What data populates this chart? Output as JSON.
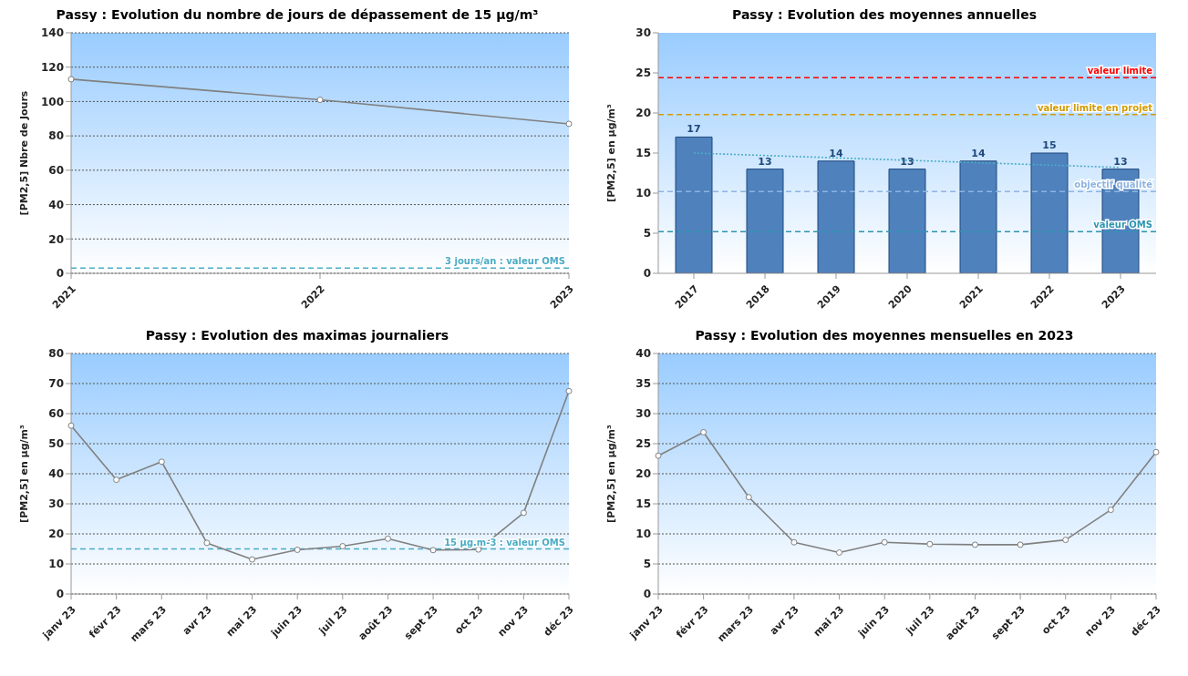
{
  "chart_data": [
    {
      "type": "line",
      "title": "Passy : Evolution du nombre de jours de dépassement de 15 µg/m³",
      "ylabel": "[PM2,5] Nbre de Jours",
      "categories": [
        "2021",
        "2022",
        "2023"
      ],
      "series": [
        {
          "color": "#808080",
          "values": [
            113,
            101,
            87
          ]
        }
      ],
      "ylim": [
        0,
        140
      ],
      "yticks": [
        0,
        20,
        40,
        60,
        80,
        100,
        120,
        140
      ],
      "grid": "y",
      "marker": "circle",
      "line_style": "solid",
      "ref_lines": [
        {
          "axis": "y",
          "value": 3,
          "label": "3 jours/an : valeur OMS",
          "color": "#4bacc6",
          "line_style": "dashed"
        }
      ]
    },
    {
      "type": "bar",
      "title": "Passy : Evolution des moyennes annuelles",
      "ylabel": "[PM2,5] en µg/m³",
      "categories": [
        "2017",
        "2018",
        "2019",
        "2020",
        "2021",
        "2022",
        "2023"
      ],
      "series": [
        {
          "color": "#4f81bd",
          "values": [
            17,
            13,
            14,
            13,
            14,
            15,
            13
          ],
          "value_labels": [
            "17",
            "13",
            "14",
            "13",
            "14",
            "15",
            "13"
          ]
        },
        {
          "type": "line",
          "color": "#4bacc6",
          "line_style": "dotted",
          "values": [
            15,
            null,
            null,
            null,
            null,
            null,
            13.2
          ]
        }
      ],
      "ylim": [
        0,
        30
      ],
      "yticks": [
        0,
        5,
        10,
        15,
        20,
        25,
        30
      ],
      "ref_lines": [
        {
          "axis": "y",
          "value": 24.4,
          "label": "valeur limite",
          "color": "#ff0000",
          "line_style": "dashed"
        },
        {
          "axis": "y",
          "value": 19.8,
          "label": "valeur limite en projet",
          "color": "#d49b00",
          "line_style": "dashed"
        },
        {
          "axis": "y",
          "value": 10.2,
          "label": "objectif qualité",
          "color": "#8db4e2",
          "line_style": "dashed"
        },
        {
          "axis": "y",
          "value": 5.2,
          "label": "valeur OMS",
          "color": "#2e95b0",
          "line_style": "dashed"
        }
      ]
    },
    {
      "type": "line",
      "title": "Passy : Evolution des maximas journaliers",
      "ylabel": "[PM2,5] en µg/m³",
      "categories": [
        "janv 23",
        "févr 23",
        "mars 23",
        "avr 23",
        "mai 23",
        "juin 23",
        "juil 23",
        "août 23",
        "sept 23",
        "oct 23",
        "nov 23",
        "déc 23"
      ],
      "series": [
        {
          "color": "#808080",
          "values": [
            56,
            38,
            44,
            17,
            11.5,
            14.7,
            15.9,
            18.4,
            14.6,
            14.8,
            27,
            67.5
          ]
        }
      ],
      "ylim": [
        0,
        80
      ],
      "yticks": [
        0,
        10,
        20,
        30,
        40,
        50,
        60,
        70,
        80
      ],
      "grid": "y",
      "marker": "circle",
      "line_style": "solid",
      "ref_lines": [
        {
          "axis": "y",
          "value": 15,
          "label": "15 µg.m-3 : valeur OMS",
          "color": "#4bacc6",
          "line_style": "dashed"
        }
      ]
    },
    {
      "type": "line",
      "title": "Passy : Evolution des moyennes mensuelles en 2023",
      "ylabel": "[PM2,5] en µg/m³",
      "categories": [
        "janv 23",
        "févr 23",
        "mars 23",
        "avr 23",
        "mai 23",
        "juin 23",
        "juil 23",
        "août 23",
        "sept 23",
        "oct 23",
        "nov 23",
        "déc 23"
      ],
      "series": [
        {
          "color": "#808080",
          "values": [
            23,
            26.9,
            16.1,
            8.6,
            6.9,
            8.6,
            8.3,
            8.2,
            8.2,
            9,
            14,
            23.6
          ]
        }
      ],
      "ylim": [
        0,
        40
      ],
      "yticks": [
        0,
        5,
        10,
        15,
        20,
        25,
        30,
        35,
        40
      ],
      "grid": "y",
      "marker": "circle",
      "line_style": "solid"
    }
  ]
}
